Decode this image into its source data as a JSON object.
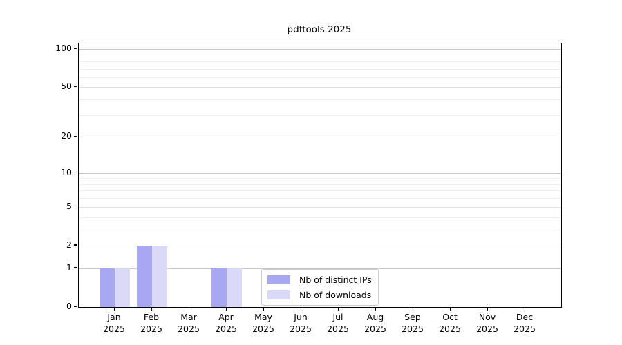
{
  "title": "pdftools 2025",
  "chart_data": {
    "type": "bar",
    "title": "pdftools 2025",
    "categories": [
      "Jan",
      "Feb",
      "Mar",
      "Apr",
      "May",
      "Jun",
      "Jul",
      "Aug",
      "Sep",
      "Oct",
      "Nov",
      "Dec"
    ],
    "year_label": "2025",
    "series": [
      {
        "name": "Nb of distinct IPs",
        "color": "#a8a8f2",
        "values": [
          1,
          2,
          0,
          1,
          0,
          0,
          0,
          0,
          0,
          0,
          0,
          0
        ]
      },
      {
        "name": "Nb of downloads",
        "color": "#dadaf8",
        "values": [
          1,
          2,
          0,
          1,
          0,
          0,
          0,
          0,
          0,
          0,
          0,
          0
        ]
      }
    ],
    "xlabel": "",
    "ylabel": "",
    "yscale": "log1p",
    "ylim": [
      0,
      110.5
    ],
    "ytick_values": [
      0,
      1,
      2,
      5,
      10,
      20,
      50,
      100
    ],
    "ytick_labels": [
      "0",
      "1",
      "2",
      "5",
      "10",
      "20",
      "50",
      "100"
    ],
    "decade_gridlines": [
      1,
      10,
      100
    ],
    "minor_gridlines": [
      3,
      4,
      6,
      7,
      8,
      9,
      30,
      40,
      60,
      70,
      80,
      90
    ],
    "grid": true,
    "legend_position": "lower center inside plot"
  },
  "colors": {
    "spine": "#000000",
    "grid_decade": "#c8c8c8",
    "grid_major": "#e2e2e2",
    "grid_minor": "#f0f0f0",
    "legend_border": "#cccccc",
    "text": "#000000"
  }
}
